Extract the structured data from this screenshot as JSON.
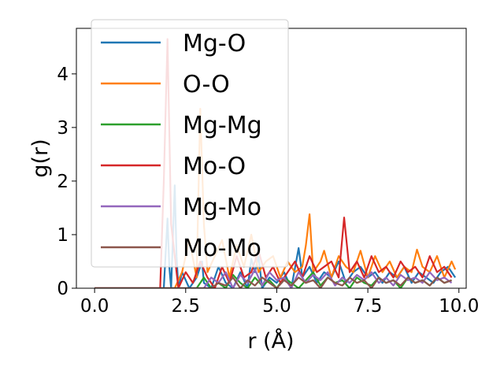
{
  "chart_data": {
    "type": "line",
    "xlabel": "r (Å)",
    "ylabel": "g(r)",
    "xlim": [
      -0.5,
      10.2
    ],
    "ylim": [
      0,
      4.85
    ],
    "xticks": [
      0.0,
      2.5,
      5.0,
      7.5,
      10.0
    ],
    "xtick_labels": [
      "0.0",
      "2.5",
      "5.0",
      "7.5",
      "10.0"
    ],
    "yticks": [
      0,
      1,
      2,
      3,
      4
    ],
    "ytick_labels": [
      "0",
      "1",
      "2",
      "3",
      "4"
    ],
    "grid": false,
    "legend_position": "top-left",
    "series": [
      {
        "name": "Mg-O",
        "color": "#1f77b4",
        "x": [
          0.0,
          1.9,
          2.0,
          2.05,
          2.1,
          2.2,
          2.25,
          2.3,
          2.4,
          2.6,
          2.8,
          2.95,
          3.0,
          3.2,
          3.4,
          3.6,
          3.8,
          4.0,
          4.2,
          4.3,
          4.4,
          4.5,
          4.6,
          4.8,
          5.0,
          5.2,
          5.4,
          5.6,
          5.65,
          5.7,
          5.9,
          6.1,
          6.3,
          6.5,
          6.7,
          6.9,
          7.1,
          7.3,
          7.5,
          7.7,
          7.9,
          8.1,
          8.3,
          8.5,
          8.7,
          8.9,
          9.1,
          9.3,
          9.5,
          9.7,
          9.9
        ],
        "y": [
          0.0,
          0.0,
          1.3,
          0.4,
          0.0,
          1.92,
          0.6,
          0.0,
          0.3,
          0.0,
          0.2,
          0.5,
          0.1,
          0.0,
          0.4,
          0.1,
          0.0,
          0.3,
          0.0,
          0.55,
          0.3,
          0.6,
          0.0,
          0.2,
          0.1,
          0.3,
          0.0,
          0.75,
          0.5,
          0.2,
          0.4,
          0.1,
          0.3,
          0.2,
          0.5,
          0.1,
          0.3,
          0.4,
          0.2,
          0.3,
          0.1,
          0.3,
          0.2,
          0.4,
          0.1,
          0.3,
          0.2,
          0.1,
          0.3,
          0.4,
          0.2
        ]
      },
      {
        "name": "O-O",
        "color": "#ff7f0e",
        "x": [
          0.0,
          2.2,
          2.4,
          2.6,
          2.8,
          2.9,
          3.0,
          3.1,
          3.3,
          3.5,
          3.7,
          3.9,
          4.1,
          4.3,
          4.5,
          4.7,
          4.9,
          5.1,
          5.3,
          5.5,
          5.7,
          5.8,
          5.9,
          6.0,
          6.2,
          6.3,
          6.5,
          6.7,
          6.9,
          7.1,
          7.3,
          7.5,
          7.7,
          7.9,
          8.1,
          8.3,
          8.5,
          8.7,
          8.85,
          9.0,
          9.2,
          9.4,
          9.6,
          9.8,
          9.9
        ],
        "y": [
          0.0,
          0.0,
          0.3,
          0.9,
          0.2,
          3.35,
          1.2,
          0.3,
          0.6,
          0.9,
          0.2,
          0.8,
          0.4,
          1.0,
          0.3,
          0.5,
          0.6,
          0.2,
          0.5,
          0.3,
          0.4,
          0.8,
          1.38,
          0.3,
          0.5,
          0.7,
          0.2,
          0.6,
          0.4,
          0.3,
          0.7,
          0.2,
          0.6,
          0.3,
          0.5,
          0.2,
          0.4,
          0.3,
          0.72,
          0.4,
          0.3,
          0.6,
          0.2,
          0.5,
          0.35
        ]
      },
      {
        "name": "Mg-Mg",
        "color": "#2ca02c",
        "x": [
          0.0,
          2.8,
          3.0,
          3.2,
          3.4,
          3.6,
          3.8,
          4.0,
          4.2,
          4.4,
          4.6,
          4.8,
          5.0,
          5.2,
          5.4,
          5.6,
          5.8,
          6.0,
          6.2,
          6.4,
          6.6,
          6.8,
          7.0,
          7.2,
          7.4,
          7.6,
          7.8,
          8.0,
          8.2,
          8.4,
          8.6,
          8.8,
          9.0,
          9.2,
          9.4,
          9.6,
          9.8
        ],
        "y": [
          0.0,
          0.0,
          0.2,
          0.0,
          0.1,
          0.0,
          0.25,
          0.1,
          0.0,
          0.2,
          0.05,
          0.15,
          0.0,
          0.2,
          0.1,
          0.0,
          0.15,
          0.3,
          0.05,
          0.2,
          0.1,
          0.15,
          0.0,
          0.2,
          0.1,
          0.05,
          0.2,
          0.1,
          0.15,
          0.0,
          0.2,
          0.1,
          0.15,
          0.05,
          0.2,
          0.1,
          0.15
        ]
      },
      {
        "name": "Mo-O",
        "color": "#d62728",
        "x": [
          0.0,
          1.8,
          1.9,
          2.0,
          2.1,
          2.3,
          2.5,
          2.7,
          2.9,
          3.1,
          3.3,
          3.5,
          3.7,
          3.9,
          4.1,
          4.3,
          4.5,
          4.7,
          4.9,
          5.1,
          5.3,
          5.5,
          5.7,
          5.9,
          6.1,
          6.3,
          6.5,
          6.7,
          6.85,
          7.0,
          7.2,
          7.4,
          7.6,
          7.8,
          8.0,
          8.2,
          8.4,
          8.6,
          8.8,
          9.0,
          9.2,
          9.4,
          9.6,
          9.8
        ],
        "y": [
          0.0,
          0.0,
          2.0,
          4.65,
          1.2,
          0.0,
          0.3,
          0.1,
          0.5,
          0.2,
          0.0,
          0.4,
          0.1,
          0.6,
          0.2,
          0.3,
          0.7,
          0.2,
          0.4,
          0.1,
          0.3,
          0.5,
          0.2,
          0.6,
          0.3,
          0.4,
          0.5,
          0.2,
          1.32,
          0.3,
          0.5,
          0.2,
          0.6,
          0.3,
          0.4,
          0.2,
          0.5,
          0.3,
          0.4,
          0.2,
          0.6,
          0.3,
          0.4,
          0.2
        ]
      },
      {
        "name": "Mg-Mo",
        "color": "#9467bd",
        "x": [
          0.0,
          3.0,
          3.2,
          3.4,
          3.6,
          3.8,
          4.0,
          4.2,
          4.4,
          4.6,
          4.8,
          5.0,
          5.2,
          5.4,
          5.6,
          5.8,
          6.0,
          6.2,
          6.4,
          6.6,
          6.8,
          7.0,
          7.2,
          7.4,
          7.6,
          7.8,
          8.0,
          8.2,
          8.4,
          8.6,
          8.8,
          9.0,
          9.2,
          9.4,
          9.6,
          9.8
        ],
        "y": [
          0.0,
          0.0,
          0.2,
          0.1,
          0.3,
          0.0,
          0.25,
          0.1,
          0.35,
          0.05,
          0.3,
          0.15,
          0.2,
          0.0,
          0.3,
          0.1,
          0.25,
          0.15,
          0.3,
          0.05,
          0.2,
          0.1,
          0.25,
          0.15,
          0.3,
          0.1,
          0.2,
          0.05,
          0.25,
          0.15,
          0.2,
          0.1,
          0.3,
          0.15,
          0.2,
          0.1
        ]
      },
      {
        "name": "Mo-Mo",
        "color": "#8c564b",
        "x": [
          0.0,
          3.2,
          3.4,
          3.6,
          3.8,
          4.0,
          4.2,
          4.4,
          4.6,
          4.8,
          5.0,
          5.2,
          5.4,
          5.6,
          5.8,
          6.0,
          6.2,
          6.4,
          6.6,
          6.8,
          7.0,
          7.2,
          7.4,
          7.6,
          7.8,
          8.0,
          8.2,
          8.4,
          8.6,
          8.8,
          9.0,
          9.2,
          9.4,
          9.6,
          9.8
        ],
        "y": [
          0.0,
          0.0,
          0.1,
          0.05,
          0.2,
          0.0,
          0.15,
          0.05,
          0.2,
          0.1,
          0.0,
          0.15,
          0.05,
          0.2,
          0.1,
          0.15,
          0.0,
          0.2,
          0.1,
          0.05,
          0.2,
          0.1,
          0.15,
          0.0,
          0.2,
          0.1,
          0.15,
          0.05,
          0.2,
          0.1,
          0.15,
          0.05,
          0.2,
          0.1,
          0.15
        ]
      }
    ]
  }
}
